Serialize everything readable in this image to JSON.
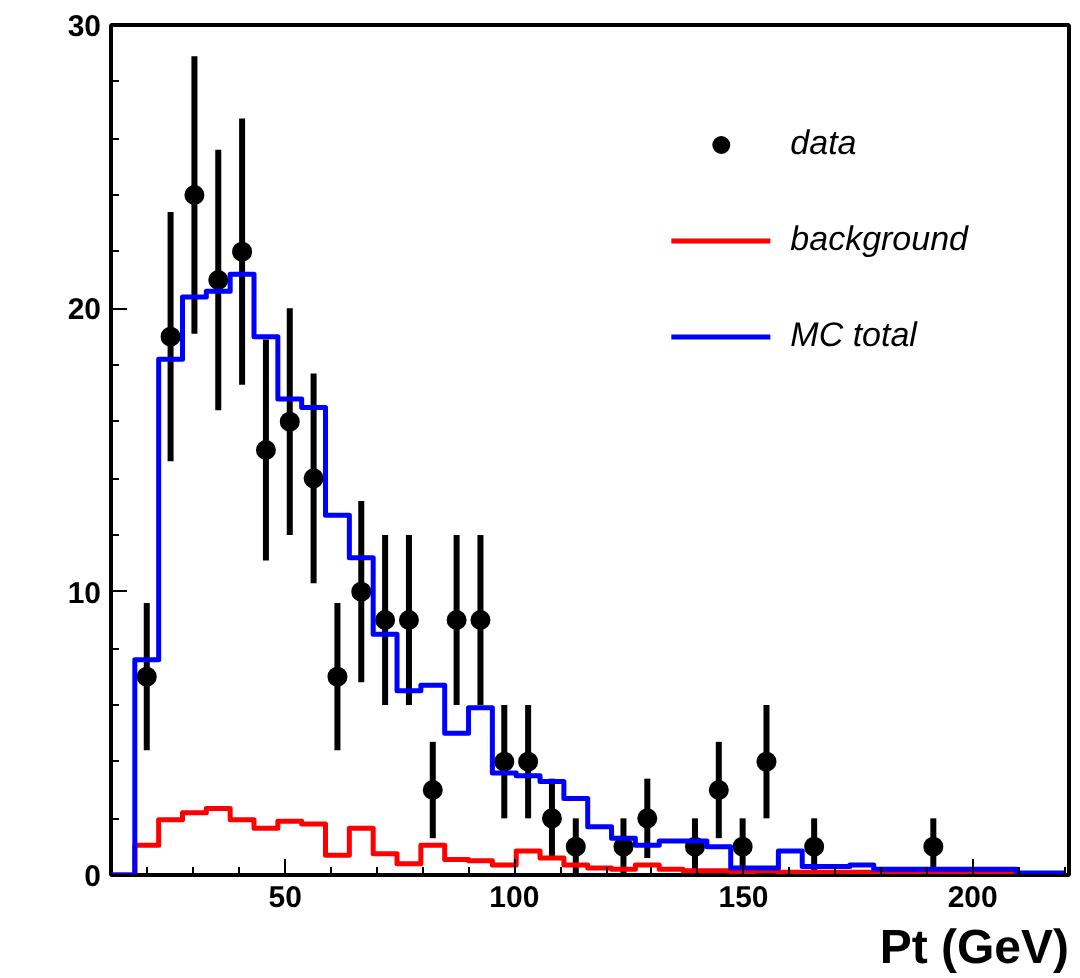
{
  "chart_data": {
    "type": "histogram",
    "xlabel": "Pt (GeV)",
    "bins": [
      12,
      17.2,
      22.4,
      27.6,
      32.8,
      38,
      43.2,
      48.4,
      53.6,
      58.8,
      64,
      69.2,
      74.4,
      79.6,
      84.8,
      90,
      95.2,
      100.4,
      105.6,
      110.8,
      116,
      121.2,
      126.4,
      131.6,
      136.8,
      142,
      147.2,
      152.4,
      157.6,
      162.8,
      168,
      173.2,
      178.4,
      183.6,
      188.8,
      194,
      199.2,
      204.4,
      209.6,
      214.8,
      220
    ],
    "series": [
      {
        "name": "data",
        "type": "scatter",
        "color": "#000000",
        "marker": "circle",
        "x": [
          19.8,
          25,
          30.2,
          35.4,
          40.6,
          45.8,
          51,
          56.2,
          61.4,
          66.6,
          71.8,
          77,
          82.2,
          87.4,
          92.6,
          97.8,
          103,
          108.2,
          113.4,
          123.8,
          129,
          139.4,
          144.6,
          149.8,
          155,
          165.4,
          191.4
        ],
        "values": [
          7,
          19,
          24,
          21,
          22,
          15,
          16,
          14,
          7,
          10,
          9,
          9,
          3,
          9,
          9,
          4,
          4,
          2,
          1,
          1,
          2,
          1,
          3,
          1,
          4,
          1,
          1
        ],
        "errors": [
          2.6,
          4.4,
          4.9,
          4.6,
          4.7,
          3.9,
          4,
          3.7,
          2.6,
          3.2,
          3,
          3,
          1.7,
          3,
          3,
          2,
          2,
          1.4,
          1,
          1,
          1.4,
          1,
          1.7,
          1,
          2,
          1,
          1
        ]
      },
      {
        "name": "background",
        "color": "#ff0000",
        "values": [
          0,
          1.05,
          1.95,
          2.2,
          2.35,
          1.95,
          1.65,
          1.9,
          1.8,
          0.7,
          1.65,
          0.75,
          0.4,
          1.05,
          0.55,
          0.5,
          0.35,
          0.85,
          0.6,
          0.35,
          0.25,
          0.2,
          0.35,
          0.2,
          0.15,
          0.15,
          0.1,
          0.15,
          0.1,
          0.1,
          0.1,
          0.1,
          0.1,
          0.1,
          0.1,
          0.1,
          0.1,
          0.1,
          0,
          0
        ]
      },
      {
        "name": "MC total",
        "color": "#0000ff",
        "values": [
          0,
          7.6,
          18.2,
          20.4,
          20.6,
          21.2,
          19,
          16.8,
          16.5,
          12.7,
          11.2,
          8.5,
          6.5,
          6.7,
          5,
          5.9,
          3.6,
          3.5,
          3.3,
          2.7,
          1.7,
          1.3,
          1.05,
          1.2,
          1.2,
          1,
          0.25,
          0.25,
          0.85,
          0.3,
          0.3,
          0.35,
          0.2,
          0.2,
          0.2,
          0.2,
          0.2,
          0.2,
          0.07,
          0.07
        ]
      }
    ],
    "xlim": [
      12,
      221
    ],
    "ylim": [
      0,
      30
    ],
    "xticks": [
      50,
      100,
      150,
      200
    ],
    "yticks": [
      0,
      10,
      20,
      30
    ],
    "grid": false,
    "legend": "top right"
  }
}
